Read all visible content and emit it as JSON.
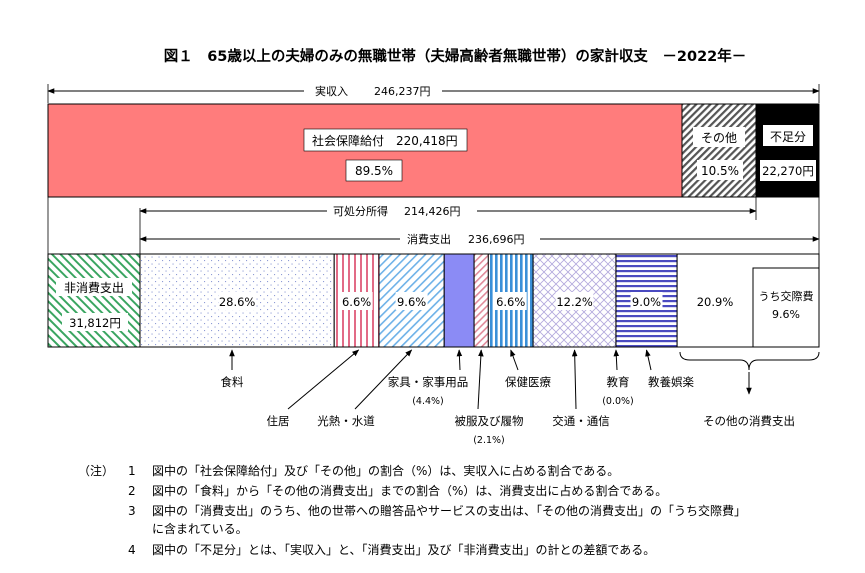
{
  "title": "図１　65歳以上の夫婦のみの無職世帯（夫婦高齢者無職世帯）の家計収支　－2022年－",
  "chart_data": {
    "type": "bar",
    "unit": "円",
    "income_arrow": {
      "label": "実収入",
      "value": "246,237円"
    },
    "income_row": [
      {
        "key": "social",
        "label": "社会保障給付",
        "value": "220,418円",
        "percent": "89.5%",
        "amount": 220418,
        "color": "#ff7c7c"
      },
      {
        "key": "other",
        "label": "その他",
        "percent": "10.5%",
        "amount": 25819,
        "color": "#666666"
      },
      {
        "key": "shortfall",
        "label": "不足分",
        "value": "22,270円",
        "amount": 22270,
        "color": "#000000"
      }
    ],
    "disposable_arrow": {
      "label": "可処分所得",
      "value": "214,426円"
    },
    "consumption_arrow": {
      "label": "消費支出",
      "value": "236,696円"
    },
    "non_consumption": {
      "label": "非消費支出",
      "value": "31,812円",
      "amount": 31812
    },
    "consumption_items": [
      {
        "key": "food",
        "label": "食料",
        "percent": 28.6,
        "percent_label": "28.6%",
        "color": "#9aa7d8"
      },
      {
        "key": "housing",
        "label": "住居",
        "percent": 6.6,
        "percent_label": "6.6%",
        "color": "#e26b86"
      },
      {
        "key": "utilities",
        "label": "光熱・水道",
        "percent": 9.6,
        "percent_label": "9.6%",
        "color": "#6db1e8"
      },
      {
        "key": "furniture",
        "label": "家具・家事用品",
        "percent": 4.4,
        "percent_label": "",
        "sublabel": "(4.4%)",
        "color": "#8b8bf5"
      },
      {
        "key": "clothing",
        "label": "被服及び履物",
        "percent": 2.1,
        "percent_label": "",
        "sublabel": "(2.1%)",
        "color": "#e08a9a"
      },
      {
        "key": "health",
        "label": "保健医療",
        "percent": 6.6,
        "percent_label": "6.6%",
        "color": "#3a8fd8"
      },
      {
        "key": "transport",
        "label": "交通・通信",
        "percent": 12.2,
        "percent_label": "12.2%",
        "color": "#a69ad8"
      },
      {
        "key": "education",
        "label": "教育",
        "percent": 0.0,
        "percent_label": "",
        "sublabel": "(0.0%)",
        "color": "#ffffff"
      },
      {
        "key": "recreation",
        "label": "教養娯楽",
        "percent": 9.0,
        "percent_label": "9.0%",
        "color": "#4a4ac0"
      },
      {
        "key": "other_consumption",
        "label": "その他の消費支出",
        "percent": 20.9,
        "percent_label": "20.9%",
        "color": "#ffffff"
      }
    ],
    "social_expense": {
      "label": "うち交際費",
      "percent": 9.6,
      "percent_label": "9.6%"
    },
    "non_consumption_color": "#3aa561"
  },
  "notes": {
    "label": "（注）",
    "items": [
      {
        "num": "1",
        "lines": [
          "図中の「社会保障給付」及び「その他」の割合（%）は、実収入に占める割合である。"
        ]
      },
      {
        "num": "2",
        "lines": [
          "図中の「食料」から「その他の消費支出」までの割合（%）は、消費支出に占める割合である。"
        ]
      },
      {
        "num": "3",
        "lines": [
          "図中の「消費支出」のうち、他の世帯への贈答品やサービスの支出は、「その他の消費支出」の「うち交際費」",
          "に含まれている。"
        ]
      },
      {
        "num": "4",
        "lines": [
          "図中の「不足分」とは、「実収入」と、「消費支出」及び「非消費支出」の計との差額である。"
        ]
      }
    ]
  }
}
